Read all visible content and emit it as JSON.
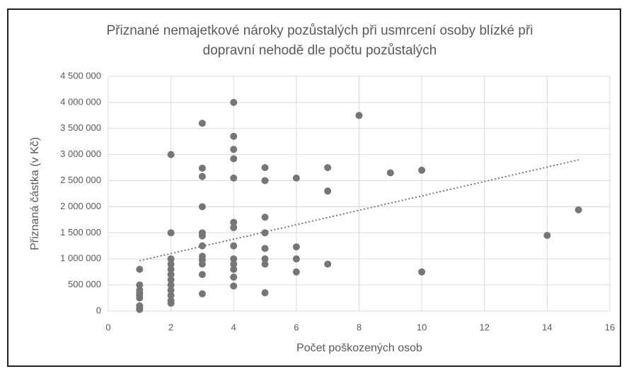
{
  "chart_data": {
    "type": "scatter",
    "title": [
      "Přiznané nemajetkové nároky pozůstalých při usmrcení osoby blízké při",
      "dopravní nehodě dle počtu pozůstalých"
    ],
    "x_label": "Počet poškozených osob",
    "y_label": "Přiznaná částka (v Kč)",
    "color": "#767676",
    "trendline": "linear",
    "grid": true,
    "x": [
      1,
      1,
      1,
      1,
      1,
      1,
      1,
      1,
      1,
      2,
      2,
      2,
      2,
      2,
      2,
      2,
      2,
      2,
      2,
      2,
      2,
      3,
      3,
      3,
      3,
      3,
      3,
      3,
      3,
      3,
      3,
      3,
      3,
      4,
      4,
      4,
      4,
      4,
      4,
      4,
      4,
      4,
      4,
      4,
      4,
      4,
      5,
      5,
      5,
      5,
      5,
      5,
      5,
      5,
      6,
      6,
      6,
      6,
      7,
      7,
      7,
      8,
      9,
      10,
      10,
      14,
      15
    ],
    "values": [
      800000,
      500000,
      400000,
      350000,
      300000,
      250000,
      100000,
      50000,
      30000,
      3000000,
      1500000,
      1000000,
      900000,
      800000,
      700000,
      600000,
      500000,
      400000,
      300000,
      200000,
      150000,
      3600000,
      2740000,
      2580000,
      2000000,
      1500000,
      1440000,
      1250000,
      1050000,
      980000,
      900000,
      700000,
      330000,
      4000000,
      3350000,
      3100000,
      2920000,
      2550000,
      1700000,
      1600000,
      1250000,
      1000000,
      900000,
      800000,
      650000,
      480000,
      2750000,
      2500000,
      1800000,
      1500000,
      1200000,
      1000000,
      900000,
      350000,
      2550000,
      1230000,
      1000000,
      750000,
      2750000,
      2300000,
      900000,
      3750000,
      2650000,
      2700000,
      750000,
      1450000,
      1940000
    ],
    "xlim": [
      0,
      16
    ],
    "xticks": [
      0,
      2,
      4,
      6,
      8,
      10,
      12,
      14,
      16
    ],
    "ylim": [
      0,
      4500000
    ],
    "yticks": [
      0,
      {
        "value": 500000,
        "label": "500 000"
      },
      {
        "value": 1000000,
        "label": "1 000 000"
      },
      {
        "value": 1500000,
        "label": "1 500 000"
      },
      {
        "value": 2000000,
        "label": "2 000 000"
      },
      {
        "value": 2500000,
        "label": "2 500 000"
      },
      {
        "value": 3000000,
        "label": "3 000 000"
      },
      {
        "value": 3500000,
        "label": "3 500 000"
      },
      {
        "value": 4000000,
        "label": "4 000 000"
      },
      {
        "value": 4500000,
        "label": "4 500 000"
      }
    ]
  }
}
